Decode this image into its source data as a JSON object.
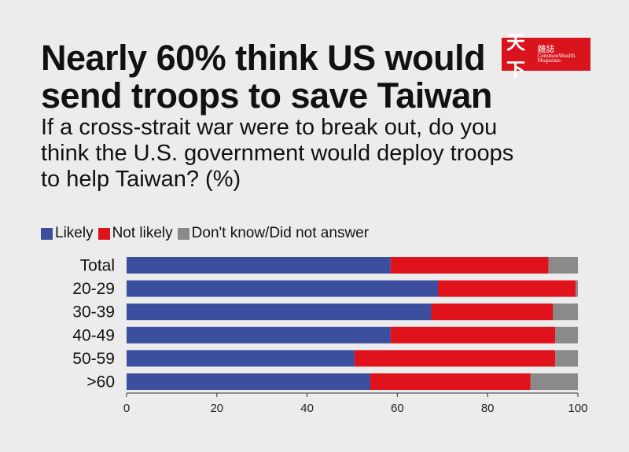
{
  "title": "Nearly 60% think US would send troops to save Taiwan",
  "subtitle": "If a cross-strait war were to break out, do you think the U.S. government would deploy troops to help Taiwan? (%)",
  "logo": {
    "cn_big": "天下",
    "cn_small": "雜誌",
    "en": "CommonWealth Magazine"
  },
  "colors": {
    "likely": "#3b4f9e",
    "not_likely": "#e0121c",
    "dont_know": "#8a8a8a",
    "background": "#ececec"
  },
  "chart_data": {
    "type": "bar",
    "orientation": "horizontal",
    "stacked": true,
    "categories": [
      "Total",
      "20-29",
      "30-39",
      "40-49",
      "50-59",
      ">60"
    ],
    "series": [
      {
        "name": "Likely",
        "values": [
          58.5,
          69,
          67.5,
          58.5,
          50.5,
          54
        ]
      },
      {
        "name": "Not likely",
        "values": [
          35,
          30.5,
          27,
          36.5,
          44.5,
          35.5
        ]
      },
      {
        "name": "Don't know/Did not answer",
        "values": [
          6.5,
          0.5,
          5.5,
          5,
          5,
          10.5
        ]
      }
    ],
    "xlim": [
      0,
      100
    ],
    "xticks": [
      "0",
      "20",
      "40",
      "60",
      "80",
      "100"
    ],
    "legend_position": "top-left",
    "grid": false
  }
}
